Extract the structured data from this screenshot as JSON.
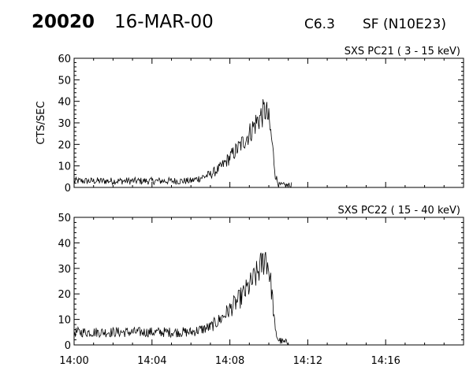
{
  "header": {
    "event_number": "20020",
    "date": "16-MAR-00",
    "flare_class": "C6.3",
    "flare_location": "SF (N10E23)"
  },
  "chart_data": [
    {
      "type": "line",
      "title": "SXS PC21  (  3 - 15 keV)",
      "ylabel": "CTS/SEC",
      "xlabel": "",
      "ylim": [
        0,
        60
      ],
      "yticks": [
        0,
        10,
        20,
        30,
        40,
        50,
        60
      ],
      "xlim_minutes": [
        0,
        20
      ],
      "xtick_labels": [],
      "grid": false,
      "series": [
        {
          "x": [
            "14:00",
            "14:01",
            "14:02",
            "14:03",
            "14:04",
            "14:05",
            "14:06",
            "14:07",
            "14:07:30",
            "14:08",
            "14:08:30",
            "14:09",
            "14:09:20",
            "14:09:40",
            "14:09:50",
            "14:10",
            "14:10:10",
            "14:10:20",
            "14:10:30",
            "14:10:45",
            "14:11",
            "14:11:10"
          ],
          "values": [
            3,
            3,
            3,
            3,
            3,
            3,
            3,
            6,
            9,
            14,
            19,
            25,
            30,
            34,
            36,
            31,
            21,
            6,
            1,
            1,
            1,
            1
          ]
        }
      ]
    },
    {
      "type": "line",
      "title": "SXS PC22  ( 15 - 40 keV)",
      "ylabel": "",
      "xlabel": "",
      "ylim": [
        0,
        50
      ],
      "yticks": [
        0,
        10,
        20,
        30,
        40,
        50
      ],
      "xlim_minutes": [
        0,
        20
      ],
      "xtick_labels": [
        "14:00",
        "14:04",
        "14:08",
        "14:12",
        "14:16"
      ],
      "grid": false,
      "series": [
        {
          "x": [
            "14:00",
            "14:01",
            "14:02",
            "14:03",
            "14:04",
            "14:05",
            "14:06",
            "14:07",
            "14:07:30",
            "14:08",
            "14:08:30",
            "14:09",
            "14:09:20",
            "14:09:40",
            "14:09:50",
            "14:10",
            "14:10:10",
            "14:10:20",
            "14:10:30",
            "14:10:45",
            "14:11"
          ],
          "values": [
            5,
            5,
            5,
            5,
            5,
            5,
            5,
            7,
            10,
            14,
            18,
            23,
            27,
            32,
            35,
            30,
            20,
            5,
            2,
            1,
            1
          ]
        }
      ]
    }
  ]
}
